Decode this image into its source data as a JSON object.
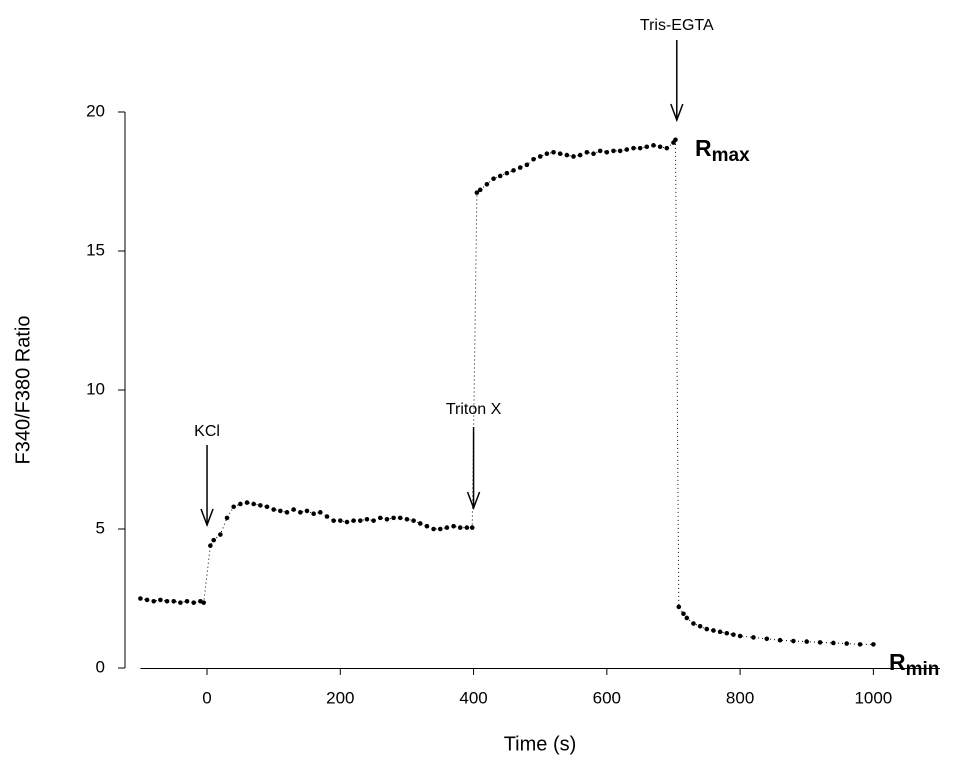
{
  "chart_data": {
    "type": "scatter",
    "x_label": "Time (s)",
    "y_label": "F340/F380 Ratio",
    "xlim": [
      -100,
      1100
    ],
    "xticks": [
      0,
      200,
      400,
      600,
      800,
      1000
    ],
    "ylim": [
      0,
      20
    ],
    "yticks": [
      0,
      5,
      10,
      15,
      20
    ],
    "grid": false,
    "series": [
      {
        "color": "#000000",
        "x": [
          -100,
          -90,
          -80,
          -70,
          -60,
          -50,
          -40,
          -30,
          -20,
          -10,
          -5,
          5,
          10,
          20,
          30,
          40,
          50,
          60,
          70,
          80,
          90,
          100,
          110,
          120,
          130,
          140,
          150,
          160,
          170,
          180,
          190,
          200,
          210,
          220,
          230,
          240,
          250,
          260,
          270,
          280,
          290,
          300,
          310,
          320,
          330,
          340,
          350,
          360,
          370,
          380,
          390,
          398,
          405,
          410,
          420,
          430,
          440,
          450,
          460,
          470,
          480,
          490,
          500,
          510,
          520,
          530,
          540,
          550,
          560,
          570,
          580,
          590,
          600,
          610,
          620,
          630,
          640,
          650,
          660,
          670,
          680,
          690,
          700,
          703,
          708,
          715,
          720,
          730,
          740,
          750,
          760,
          770,
          780,
          790,
          800,
          820,
          840,
          860,
          880,
          900,
          920,
          940,
          960,
          980,
          1000
        ],
        "values": [
          2.5,
          2.45,
          2.4,
          2.45,
          2.4,
          2.4,
          2.35,
          2.4,
          2.35,
          2.4,
          2.35,
          4.4,
          4.6,
          4.8,
          5.4,
          5.8,
          5.9,
          5.95,
          5.9,
          5.85,
          5.8,
          5.7,
          5.65,
          5.6,
          5.7,
          5.6,
          5.65,
          5.55,
          5.6,
          5.45,
          5.3,
          5.3,
          5.25,
          5.3,
          5.3,
          5.35,
          5.3,
          5.4,
          5.35,
          5.4,
          5.4,
          5.35,
          5.3,
          5.2,
          5.1,
          5.0,
          5.0,
          5.05,
          5.1,
          5.05,
          5.05,
          5.05,
          17.1,
          17.2,
          17.4,
          17.6,
          17.7,
          17.8,
          17.9,
          18.0,
          18.1,
          18.3,
          18.4,
          18.5,
          18.55,
          18.5,
          18.45,
          18.4,
          18.45,
          18.55,
          18.5,
          18.6,
          18.55,
          18.6,
          18.6,
          18.65,
          18.7,
          18.7,
          18.75,
          18.8,
          18.75,
          18.7,
          18.9,
          19.0,
          2.2,
          1.95,
          1.8,
          1.6,
          1.5,
          1.4,
          1.35,
          1.3,
          1.25,
          1.2,
          1.15,
          1.1,
          1.05,
          1.0,
          0.97,
          0.95,
          0.92,
          0.9,
          0.88,
          0.85,
          0.85
        ]
      }
    ],
    "annotations": [
      {
        "text": "KCl",
        "x": 0
      },
      {
        "text": "Triton X",
        "x": 400
      },
      {
        "text": "Tris-EGTA",
        "x": 705
      }
    ],
    "range_labels": [
      {
        "text": "R",
        "subscript": "max"
      },
      {
        "text": "R",
        "subscript": "min"
      }
    ]
  }
}
